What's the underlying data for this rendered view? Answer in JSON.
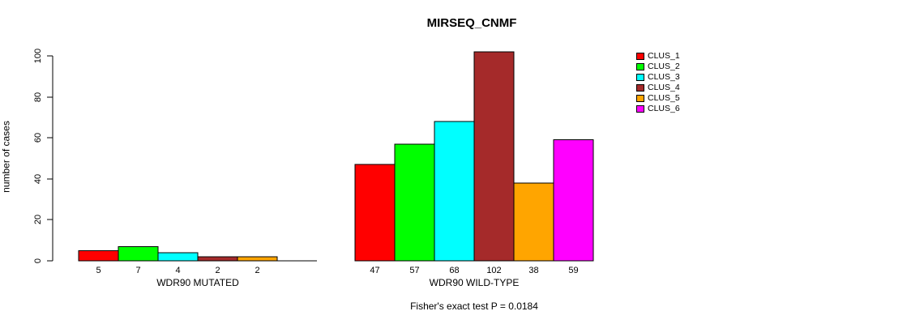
{
  "chart_data": {
    "type": "bar",
    "title": "MIRSEQ_CNMF",
    "ylabel": "number of cases",
    "ylim": [
      0,
      100
    ],
    "yticks": [
      0,
      20,
      40,
      60,
      80,
      100
    ],
    "grid": false,
    "legend_position": "right-outside",
    "series_labels": [
      "CLUS_1",
      "CLUS_2",
      "CLUS_3",
      "CLUS_4",
      "CLUS_5",
      "CLUS_6"
    ],
    "series_colors": [
      "#ff0000",
      "#00ff00",
      "#00ffff",
      "#a52a2a",
      "#ffa500",
      "#ff00ff"
    ],
    "groups": [
      {
        "label": "WDR90 MUTATED",
        "values": [
          5,
          7,
          4,
          2,
          2,
          0
        ]
      },
      {
        "label": "WDR90 WILD-TYPE",
        "values": [
          47,
          57,
          68,
          102,
          38,
          59
        ]
      }
    ],
    "annotation": "Fisher's exact test P = 0.0184"
  }
}
